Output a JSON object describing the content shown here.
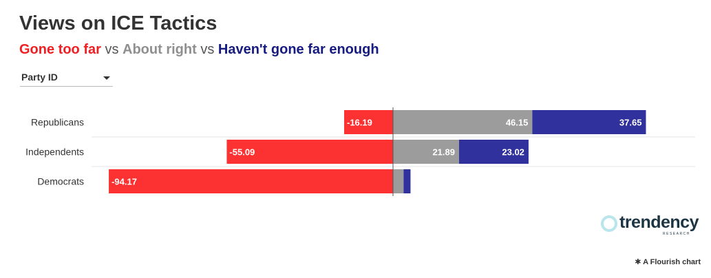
{
  "title": "Views on ICE Tactics",
  "subtitle": {
    "segments": [
      {
        "text": "Gone too far",
        "color": "#ee2024"
      },
      {
        "text": "About right",
        "color": "#8f8f8f"
      },
      {
        "text": "Haven't gone far enough",
        "color": "#151b80"
      }
    ],
    "separator": "vs"
  },
  "filter": {
    "label": "Party ID"
  },
  "chart_data": {
    "type": "bar",
    "orientation": "horizontal",
    "stacked": true,
    "diverging": true,
    "categories": [
      "Republicans",
      "Independents",
      "Democrats"
    ],
    "series": [
      {
        "name": "Gone too far",
        "color": "#fc3232",
        "values": [
          -16.19,
          -55.09,
          -94.17
        ]
      },
      {
        "name": "About right",
        "color": "#9c9c9c",
        "values": [
          46.15,
          21.89,
          3.5
        ]
      },
      {
        "name": "Haven't gone far enough",
        "color": "#30319c",
        "values": [
          37.65,
          23.02,
          2.3
        ]
      }
    ],
    "data_labels": [
      [
        "-16.19",
        "46.15",
        "37.65"
      ],
      [
        "-55.09",
        "21.89",
        "23.02"
      ],
      [
        "-94.17",
        "",
        ""
      ]
    ],
    "xlim": [
      -100,
      100
    ],
    "grid": true,
    "legend": "none"
  },
  "logo": {
    "name": "trendency",
    "tagline": "RESEARCH"
  },
  "credit": {
    "icon": "asterisk-icon",
    "text": "A Flourish chart",
    "glyph": "✱"
  }
}
